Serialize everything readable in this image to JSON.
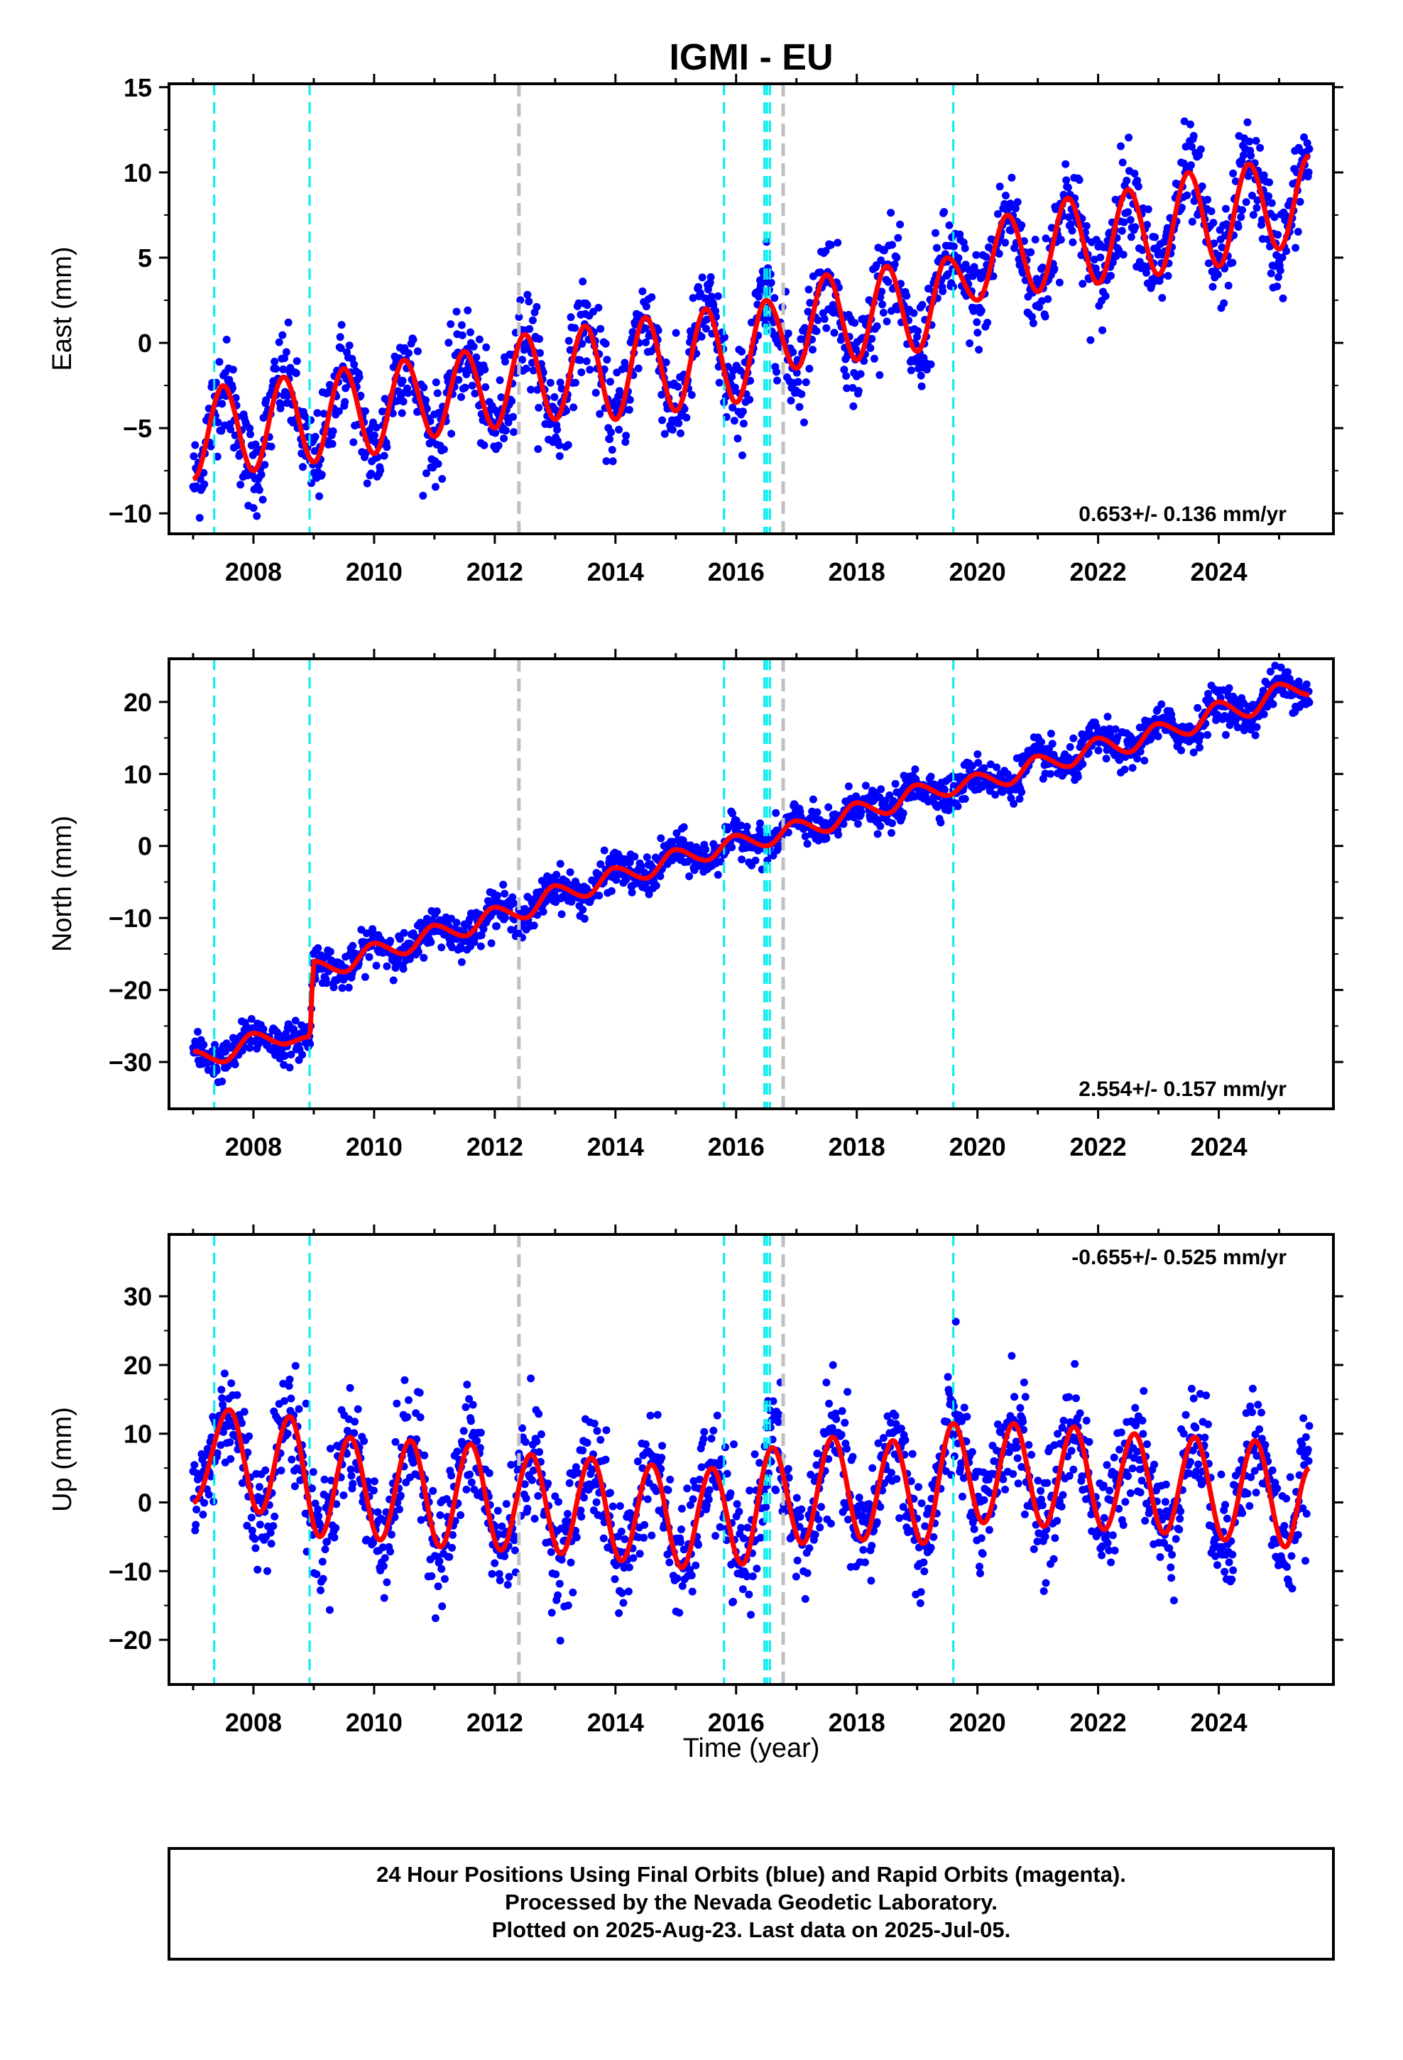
{
  "chart_data": {
    "title": "IGMI - EU",
    "type": "scatter",
    "xlabel": "Time (year)",
    "xlim": [
      2006.6,
      2025.9
    ],
    "xticks": [
      2008,
      2010,
      2012,
      2014,
      2016,
      2018,
      2020,
      2022,
      2024
    ],
    "colors": {
      "points": "#0000ff",
      "model": "#ff0000",
      "equipment_change": "#00eeee",
      "other_change": "#c0c0c0"
    },
    "equipment_change_lines": [
      2007.35,
      2008.93,
      2015.8,
      2016.47,
      2016.51,
      2016.56,
      2019.6
    ],
    "other_change_lines": [
      2012.4,
      2016.78
    ],
    "panels": [
      {
        "key": "east",
        "ylabel": "East (mm)",
        "ylim": [
          -11.2,
          15.2
        ],
        "yticks": [
          -10,
          -5,
          0,
          5,
          10,
          15
        ],
        "rate_text": "0.653+/- 0.136 mm/yr",
        "rate_position": "bottom-right",
        "series": [
          {
            "model": "trend with annual signal",
            "x": [
              2007.0,
              2007.5,
              2008.0,
              2008.5,
              2009.0,
              2009.5,
              2010.0,
              2010.5,
              2011.0,
              2011.5,
              2012.0,
              2012.5,
              2013.0,
              2013.5,
              2014.0,
              2014.5,
              2015.0,
              2015.5,
              2016.0,
              2016.5,
              2017.0,
              2017.5,
              2018.0,
              2018.5,
              2019.0,
              2019.5,
              2020.0,
              2020.5,
              2021.0,
              2021.5,
              2022.0,
              2022.5,
              2023.0,
              2023.5,
              2024.0,
              2024.5,
              2025.0,
              2025.5
            ],
            "y": [
              -8.0,
              -2.5,
              -7.5,
              -2.0,
              -7.0,
              -1.5,
              -6.5,
              -1.0,
              -5.5,
              -0.5,
              -5.0,
              0.5,
              -4.5,
              1.0,
              -4.5,
              1.5,
              -4.0,
              2.0,
              -3.5,
              2.5,
              -1.5,
              4.0,
              -1.0,
              4.5,
              -0.5,
              5.0,
              2.5,
              7.5,
              3.0,
              8.5,
              3.5,
              9.0,
              4.0,
              10.0,
              4.5,
              10.5,
              5.5,
              11.0
            ]
          }
        ]
      },
      {
        "key": "north",
        "ylabel": "North (mm)",
        "ylim": [
          -36.5,
          26.0
        ],
        "yticks": [
          -30,
          -20,
          -10,
          0,
          10,
          20
        ],
        "rate_text": "2.554+/- 0.157 mm/yr",
        "rate_position": "bottom-right",
        "series": [
          {
            "model": "trend with annual signal",
            "x": [
              2007.0,
              2007.5,
              2008.0,
              2008.5,
              2008.93,
              2009.0,
              2009.5,
              2010.0,
              2010.5,
              2011.0,
              2011.5,
              2012.0,
              2012.5,
              2013.0,
              2013.5,
              2014.0,
              2014.5,
              2015.0,
              2015.5,
              2016.0,
              2016.5,
              2017.0,
              2017.5,
              2018.0,
              2018.5,
              2019.0,
              2019.5,
              2020.0,
              2020.5,
              2021.0,
              2021.5,
              2022.0,
              2022.5,
              2023.0,
              2023.5,
              2024.0,
              2024.5,
              2025.0,
              2025.5
            ],
            "y": [
              -28.5,
              -30.0,
              -26.0,
              -27.5,
              -26.5,
              -16.0,
              -17.5,
              -13.5,
              -15.0,
              -11.0,
              -12.5,
              -8.5,
              -10.0,
              -5.5,
              -7.0,
              -3.0,
              -4.5,
              -0.5,
              -2.0,
              1.5,
              0.0,
              3.5,
              2.0,
              6.0,
              4.5,
              8.5,
              7.0,
              10.0,
              8.5,
              12.5,
              11.0,
              15.0,
              13.0,
              17.0,
              15.5,
              20.0,
              18.0,
              22.5,
              21.0
            ]
          }
        ]
      },
      {
        "key": "up",
        "ylabel": "Up (mm)",
        "ylim": [
          -26.5,
          39.0
        ],
        "yticks": [
          -20,
          -10,
          0,
          10,
          20,
          30
        ],
        "rate_text": "-0.655+/- 0.525 mm/yr",
        "rate_position": "top-right",
        "series": [
          {
            "model": "trend with annual signal",
            "x": [
              2007.0,
              2007.6,
              2008.1,
              2008.6,
              2009.1,
              2009.6,
              2010.1,
              2010.6,
              2011.1,
              2011.6,
              2012.1,
              2012.6,
              2013.1,
              2013.6,
              2014.1,
              2014.6,
              2015.1,
              2015.6,
              2016.1,
              2016.6,
              2017.1,
              2017.6,
              2018.1,
              2018.6,
              2019.1,
              2019.6,
              2020.1,
              2020.6,
              2021.1,
              2021.6,
              2022.1,
              2022.6,
              2023.1,
              2023.6,
              2024.1,
              2024.6,
              2025.1,
              2025.5
            ],
            "y": [
              0,
              13.5,
              -1.5,
              12.5,
              -5.0,
              9.5,
              -5.5,
              9.0,
              -6.5,
              8.5,
              -7.0,
              7.0,
              -7.5,
              6.5,
              -8.5,
              5.5,
              -9.5,
              5.0,
              -9.0,
              8.0,
              -6.0,
              9.5,
              -5.5,
              9.0,
              -6.0,
              11.5,
              -3.0,
              11.5,
              -3.5,
              11.0,
              -4.0,
              10.0,
              -4.5,
              9.5,
              -5.5,
              9.0,
              -6.5,
              5.0
            ]
          }
        ]
      }
    ]
  },
  "footer": {
    "line1": "24 Hour Positions Using Final Orbits (blue) and Rapid Orbits (magenta).",
    "line2": "Processed by the Nevada Geodetic Laboratory.",
    "line3": "Plotted on 2025-Aug-23. Last data on 2025-Jul-05."
  }
}
